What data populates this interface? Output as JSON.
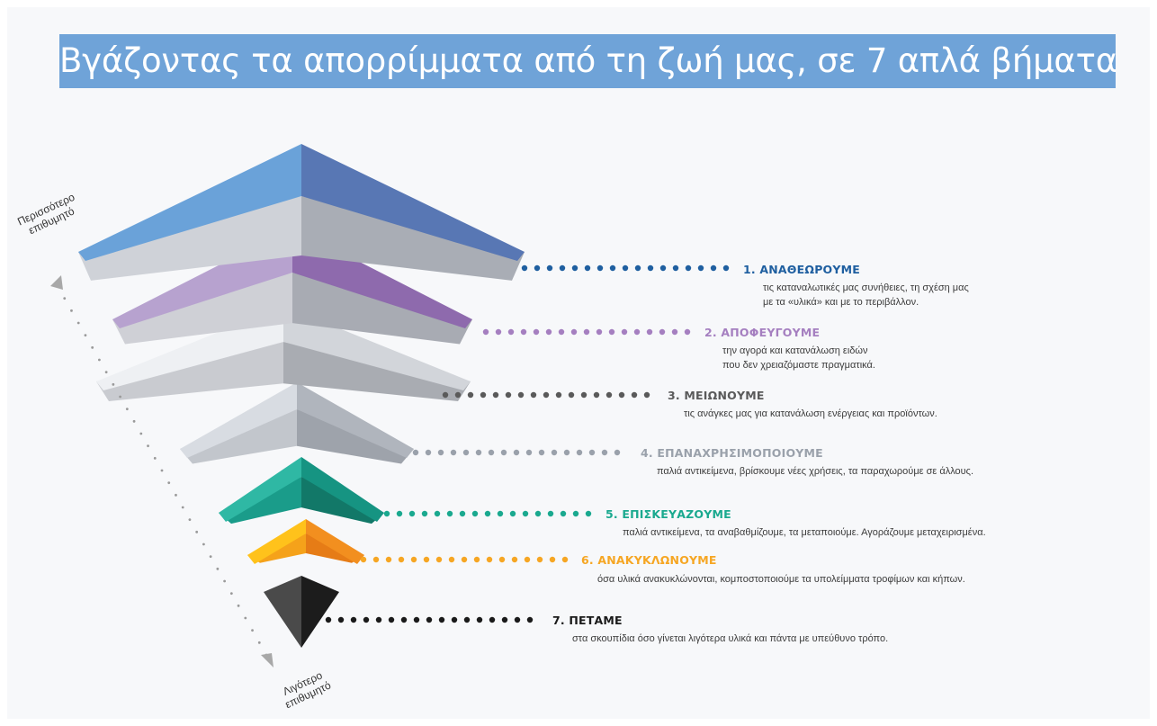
{
  "title": "Βγάζοντας τα απορρίμματα από τη ζωή μας, σε 7 απλά βήματα",
  "axis": {
    "top_label": [
      "Περισσότερο",
      "επιθυμητό"
    ],
    "bottom_label": [
      "Λιγότερο",
      "επιθυμητό"
    ]
  },
  "steps": [
    {
      "label": "1. ΑΝΑΘΕΩΡΟΥΜΕ",
      "lines": [
        "τις καταναλωτικές μας συνήθειες, τη σχέση μας",
        "με τα «υλικά» και με το περιβάλλον."
      ],
      "color": "#1f5fa0"
    },
    {
      "label": "2. ΑΠΟΦΕΥΓΟΥΜΕ",
      "lines": [
        "την αγορά και κατανάλωση ειδών",
        "που δεν χρειαζόμαστε πραγματικά."
      ],
      "color": "#a57fc0"
    },
    {
      "label": "3. ΜΕΙΩΝΟΥΜΕ",
      "lines": [
        "τις ανάγκες μας για κατανάλωση ενέργειας και προϊόντων."
      ],
      "color": "#5a5a5a"
    },
    {
      "label": "4. ΕΠΑΝΑΧΡΗΣΙΜΟΠΟΙΟΥΜΕ",
      "lines": [
        "παλιά αντικείμενα, βρίσκουμε νέες χρήσεις, τα παραχωρούμε σε άλλους."
      ],
      "color": "#9aa1ab"
    },
    {
      "label": "5. ΕΠΙΣΚΕΥΑΖΟΥΜΕ",
      "lines": [
        "παλιά αντικείμενα, τα αναβαθμίζουμε, τα μεταποιούμε. Αγοράζουμε μεταχειρισμένα."
      ],
      "color": "#1aa98f"
    },
    {
      "label": "6. ΑΝΑΚΥΚΛΩΝΟΥΜΕ",
      "lines": [
        "όσα υλικά ανακυκλώνονται, κομποστοποιούμε τα υπολείμματα τροφίμων και κήπων."
      ],
      "color": "#f6a623"
    },
    {
      "label": "7. ΠΕΤΑΜΕ",
      "lines": [
        "στα σκουπίδια όσο γίνεται λιγότερα υλικά και πάντα με υπεύθυνο τρόπο."
      ],
      "color": "#1a1a1a"
    }
  ]
}
